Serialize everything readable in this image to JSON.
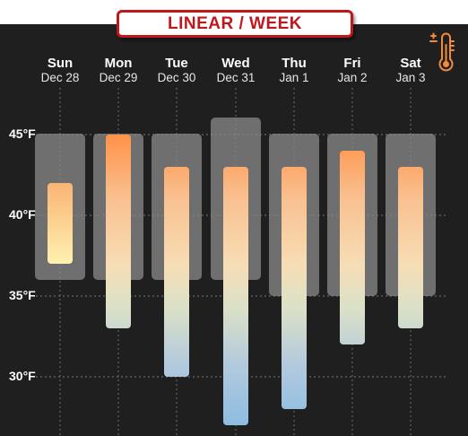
{
  "banner": {
    "title": "LINEAR / WEEK"
  },
  "icons": {
    "thermometer": "thermometer-settings-icon",
    "thermometer_color": "#f28c3a"
  },
  "chart_data": {
    "type": "range-bar",
    "unit": "°F",
    "y_ticks": [
      {
        "value": 45,
        "label": "45°F"
      },
      {
        "value": 40,
        "label": "40°F"
      },
      {
        "value": 35,
        "label": "35°F"
      },
      {
        "value": 30,
        "label": "30°F"
      }
    ],
    "days": [
      {
        "name": "Sun",
        "date": "Dec 28",
        "normal_low": 36,
        "normal_high": 45,
        "low": 37,
        "high": 42
      },
      {
        "name": "Mon",
        "date": "Dec 29",
        "normal_low": 36,
        "normal_high": 45,
        "low": 33,
        "high": 45
      },
      {
        "name": "Tue",
        "date": "Dec 30",
        "normal_low": 36,
        "normal_high": 45,
        "low": 30,
        "high": 43
      },
      {
        "name": "Wed",
        "date": "Dec 31",
        "normal_low": 36,
        "normal_high": 46,
        "low": 27,
        "high": 43
      },
      {
        "name": "Thu",
        "date": "Jan 1",
        "normal_low": 35,
        "normal_high": 45,
        "low": 28,
        "high": 43
      },
      {
        "name": "Fri",
        "date": "Jan 2",
        "normal_low": 35,
        "normal_high": 45,
        "low": 32,
        "high": 44
      },
      {
        "name": "Sat",
        "date": "Jan 3",
        "normal_low": 35,
        "normal_high": 45,
        "low": 33,
        "high": 43
      }
    ]
  }
}
